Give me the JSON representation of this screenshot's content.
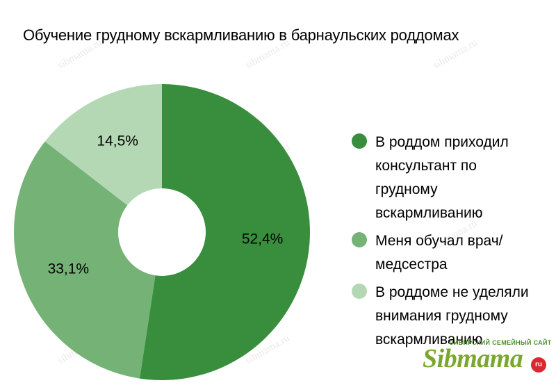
{
  "chart_data": {
    "type": "pie",
    "donut": true,
    "title": "Обучение грудному вскармливанию в барнаульских роддомах",
    "start_angle_deg": 0,
    "direction": "clockwise",
    "slices": [
      {
        "name": "В роддом приходил консультант по грудному вскармливанию",
        "value": 52.4,
        "label": "52,4%",
        "color": "#388e3c"
      },
      {
        "name": "Меня обучал врач/ медсестра",
        "value": 33.1,
        "label": "33,1%",
        "color": "#74b276"
      },
      {
        "name": "В роддоме не уделяли внимания грудному вскармливанию",
        "value": 14.5,
        "label": "14,5%",
        "color": "#b4d8b4"
      }
    ],
    "legend_position": "right"
  },
  "legend": {
    "items": [
      {
        "lines": [
          "В роддом приходил",
          "консультант по",
          "грудному",
          "вскармливанию"
        ]
      },
      {
        "lines": [
          "Меня обучал врач/",
          "медсестра"
        ]
      },
      {
        "lines": [
          "В роддоме не уделяли",
          "внимания грудному",
          "вскармливанию"
        ]
      }
    ]
  },
  "watermark": {
    "text": "sibmama.ru"
  },
  "logo": {
    "tagline": "СИБИРСКИЙ СЕМЕЙНЫЙ САЙТ",
    "name": "Sibmama",
    "suffix": "ru"
  }
}
